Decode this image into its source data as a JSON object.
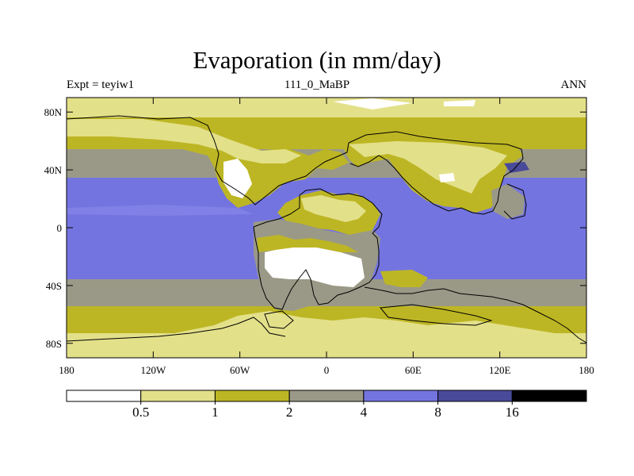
{
  "title": "Evaporation (in mm/day)",
  "subtitle_left": "Expt = teyiw1",
  "subtitle_center": "111_0_MaBP",
  "subtitle_right": "ANN",
  "map": {
    "lon_range": [
      -180,
      180
    ],
    "lat_range": [
      -90,
      90
    ],
    "lat_ticks": [
      {
        "value": 80,
        "label": "80N"
      },
      {
        "value": 40,
        "label": "40N"
      },
      {
        "value": 0,
        "label": "0"
      },
      {
        "value": -40,
        "label": "40S"
      },
      {
        "value": -80,
        "label": "80S"
      }
    ],
    "lon_ticks": [
      {
        "value": -180,
        "label": "180"
      },
      {
        "value": -120,
        "label": "120W"
      },
      {
        "value": -60,
        "label": "60W"
      },
      {
        "value": 0,
        "label": "0"
      },
      {
        "value": 60,
        "label": "60E"
      },
      {
        "value": 120,
        "label": "120E"
      },
      {
        "value": 180,
        "label": "180"
      }
    ]
  },
  "colorbar": {
    "levels": [
      "0.5",
      "1",
      "2",
      "4",
      "8",
      "16"
    ],
    "colors": [
      "#ffffff",
      "#e3e08a",
      "#bdb624",
      "#9a9987",
      "#7474e0",
      "#4a4a9a",
      "#000000"
    ]
  }
}
